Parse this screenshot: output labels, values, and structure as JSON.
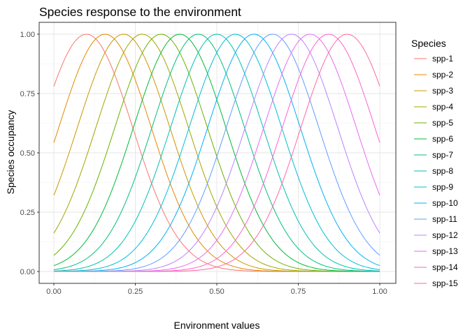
{
  "chart_data": {
    "type": "line",
    "title": "Species response to the environment",
    "xlabel": "Environment values",
    "ylabel": "Species occupancy",
    "xlim": [
      0,
      1
    ],
    "ylim": [
      0,
      1
    ],
    "x_ticks": [
      "0.00",
      "0.25",
      "0.50",
      "0.75",
      "1.00"
    ],
    "y_ticks": [
      "0.00",
      "0.25",
      "0.50",
      "0.75",
      "1.00"
    ],
    "grid": true,
    "legend": {
      "title": "Species",
      "position": "right"
    },
    "curve_shape": "gaussian",
    "curve_width_sd": 0.142,
    "series": [
      {
        "name": "spp-1",
        "optimum": 0.1,
        "color": "#F8766D"
      },
      {
        "name": "spp-2",
        "optimum": 0.157,
        "color": "#E58700"
      },
      {
        "name": "spp-3",
        "optimum": 0.214,
        "color": "#C99800"
      },
      {
        "name": "spp-4",
        "optimum": 0.271,
        "color": "#A3A500"
      },
      {
        "name": "spp-5",
        "optimum": 0.329,
        "color": "#6BB100"
      },
      {
        "name": "spp-6",
        "optimum": 0.386,
        "color": "#00BA38"
      },
      {
        "name": "spp-7",
        "optimum": 0.443,
        "color": "#00BF7D"
      },
      {
        "name": "spp-8",
        "optimum": 0.5,
        "color": "#00C0AF"
      },
      {
        "name": "spp-9",
        "optimum": 0.557,
        "color": "#00BCD8"
      },
      {
        "name": "spp-10",
        "optimum": 0.614,
        "color": "#00B0F6"
      },
      {
        "name": "spp-11",
        "optimum": 0.671,
        "color": "#619CFF"
      },
      {
        "name": "spp-12",
        "optimum": 0.729,
        "color": "#B983FF"
      },
      {
        "name": "spp-13",
        "optimum": 0.786,
        "color": "#E76BF3"
      },
      {
        "name": "spp-14",
        "optimum": 0.843,
        "color": "#FD61D1"
      },
      {
        "name": "spp-15",
        "optimum": 0.9,
        "color": "#FF67A4"
      }
    ]
  }
}
